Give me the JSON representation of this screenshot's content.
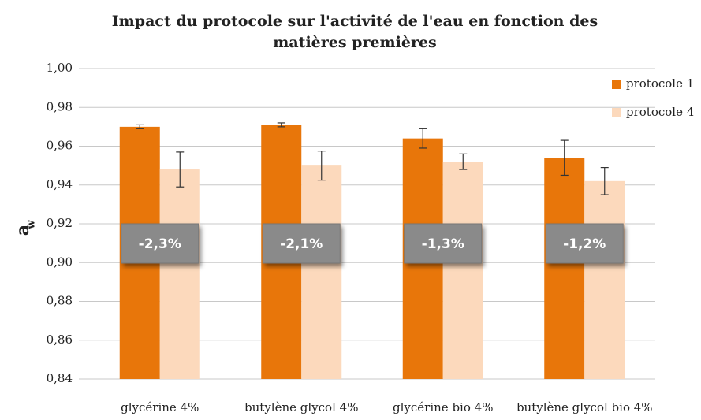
{
  "chart_data": {
    "type": "bar",
    "title": "Impact du protocole sur l'activité de l'eau en fonction des matières premières",
    "y_label": "a",
    "y_label_subscript": "w",
    "categories": [
      "glycérine 4%",
      "butylène glycol 4%",
      "glycérine bio 4%",
      "butylène glycol bio 4%"
    ],
    "series": [
      {
        "name": "protocole 1",
        "color": "#e8760a",
        "values": [
          0.97,
          0.971,
          0.964,
          0.954
        ],
        "errors": [
          0.001,
          0.001,
          0.005,
          0.009
        ]
      },
      {
        "name": "protocole 4",
        "color": "#fcd9bc",
        "values": [
          0.948,
          0.95,
          0.952,
          0.942
        ],
        "errors": [
          0.009,
          0.0075,
          0.004,
          0.007
        ]
      }
    ],
    "annotations": [
      "-2,3%",
      "-2,1%",
      "-1,3%",
      "-1,2%"
    ],
    "ylim": [
      0.84,
      1.0
    ],
    "yticks": [
      {
        "value": 0.84,
        "label": "0,84"
      },
      {
        "value": 0.86,
        "label": "0,86"
      },
      {
        "value": 0.88,
        "label": "0,88"
      },
      {
        "value": 0.9,
        "label": "0,90"
      },
      {
        "value": 0.92,
        "label": "0,92"
      },
      {
        "value": 0.94,
        "label": "0,94"
      },
      {
        "value": 0.96,
        "label": "0,96"
      },
      {
        "value": 0.98,
        "label": "0,98"
      },
      {
        "value": 1.0,
        "label": "1,00"
      }
    ],
    "grid": true,
    "legend": "top-right"
  }
}
